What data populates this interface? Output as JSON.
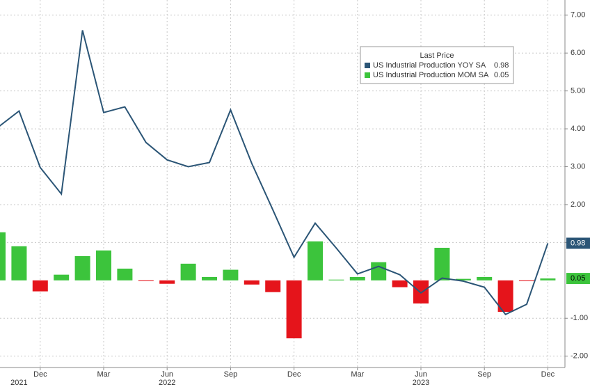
{
  "chart_data": {
    "type": "bar-line",
    "legend_title": "Last Price",
    "categories": [
      null,
      null,
      "Dec",
      null,
      null,
      "Mar",
      null,
      null,
      "Jun",
      null,
      null,
      "Sep",
      null,
      null,
      "Dec",
      null,
      null,
      "Mar",
      null,
      null,
      "Jun",
      null,
      null,
      "Sep",
      null,
      null,
      "Dec"
    ],
    "year_labels": [
      null,
      "2021",
      null,
      null,
      null,
      null,
      null,
      null,
      "2022",
      null,
      null,
      null,
      null,
      null,
      null,
      null,
      null,
      null,
      null,
      null,
      "2023",
      null,
      null,
      null,
      null,
      null,
      null
    ],
    "series": [
      {
        "name": "US Industrial Production YOY SA",
        "color": "#2b5576",
        "kind": "line",
        "values": [
          4.04,
          4.47,
          2.98,
          2.28,
          6.6,
          4.43,
          4.58,
          3.64,
          3.18,
          3.0,
          3.11,
          4.5,
          3.09,
          1.86,
          0.61,
          1.51,
          0.85,
          0.17,
          0.37,
          0.15,
          -0.33,
          0.06,
          -0.02,
          -0.18,
          -0.9,
          -0.63,
          0.98
        ]
      },
      {
        "name": "US Industrial Production MOM SA",
        "color": "#3cc43c",
        "negative_color": "#e5141b",
        "kind": "bar",
        "values": [
          1.27,
          0.9,
          -0.29,
          0.15,
          0.64,
          0.79,
          0.31,
          -0.02,
          -0.09,
          0.44,
          0.09,
          0.28,
          -0.11,
          -0.31,
          -1.53,
          1.03,
          0.02,
          0.09,
          0.48,
          -0.18,
          -0.61,
          0.86,
          0.04,
          0.09,
          -0.83,
          -0.02,
          0.05
        ]
      }
    ],
    "ylim": [
      -2.3,
      7.4
    ],
    "yticks": [
      {
        "value": 7,
        "label": "7.00"
      },
      {
        "value": 6,
        "label": "6.00"
      },
      {
        "value": 5,
        "label": "5.00"
      },
      {
        "value": 4,
        "label": "4.00"
      },
      {
        "value": 3,
        "label": "3.00"
      },
      {
        "value": 2,
        "label": "2.00"
      },
      {
        "value": 1,
        "label": "1.00"
      },
      {
        "value": -1,
        "label": "-1.00"
      },
      {
        "value": -2,
        "label": "-2.00"
      }
    ],
    "grid": true
  }
}
